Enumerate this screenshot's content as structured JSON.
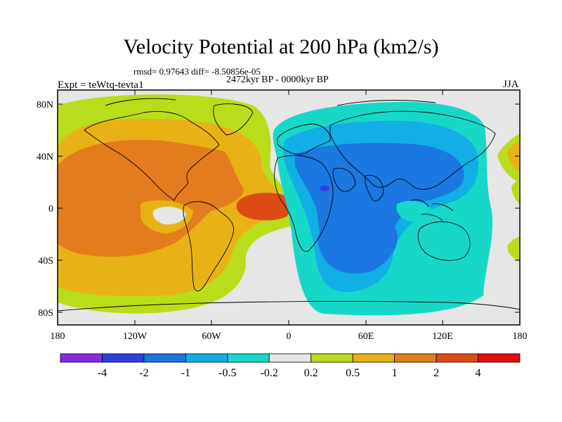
{
  "title": "Velocity Potential at 200 hPa (km2/s)",
  "stats": "rmsd= 0.97643 diff= -8.50856e-05",
  "period": "2472kyr BP - 0000kyr BP",
  "experiment": "Expt = teWtq-tevta1",
  "season": "JJA",
  "map": {
    "y_ticks": [
      "80N",
      "40N",
      "0",
      "40S",
      "80S"
    ],
    "x_ticks": [
      "180",
      "120W",
      "60W",
      "0",
      "60E",
      "120E",
      "180"
    ],
    "regions": [
      {
        "name": "pacific-americas-positive",
        "level": "0.5 to 1"
      },
      {
        "name": "eastern-pacific-maximum",
        "level": "1 to 2"
      },
      {
        "name": "tropical-atlantic-maximum",
        "level": "2 to 4"
      },
      {
        "name": "eurasia-indian-negative",
        "level": "-1 to -0.5"
      },
      {
        "name": "africa-asia-minimum",
        "level": "-2 to -1"
      }
    ]
  },
  "colorbar": {
    "colors": [
      "#8a2be2",
      "#2f3fe0",
      "#1a78e0",
      "#12aee6",
      "#17d8c8",
      "#e6e6e6",
      "#b9dd1a",
      "#e8b116",
      "#e27c1c",
      "#de4a14",
      "#e10f0f"
    ],
    "labels": [
      "-4",
      "-2",
      "-1",
      "-0.5",
      "-0.2",
      "0.2",
      "0.5",
      "1",
      "2",
      "4"
    ]
  }
}
